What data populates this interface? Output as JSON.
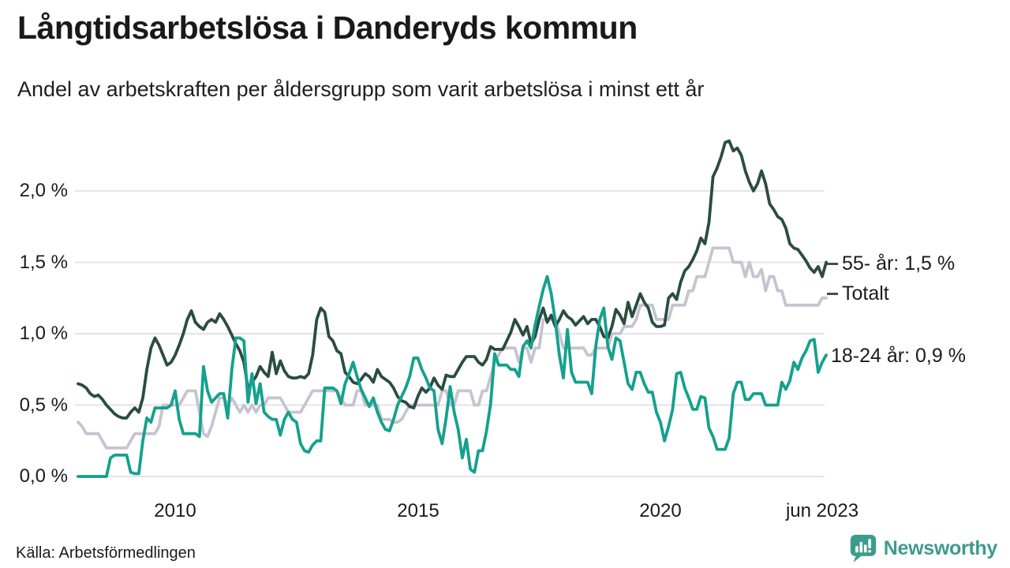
{
  "footer": {
    "source": "Källa: Arbetsförmedlingen",
    "brand": "Newsworthy",
    "brand_color": "#3d9b8d",
    "logo_icon": "bar-chart-speech-bubble"
  },
  "chart_data": {
    "type": "line",
    "title": "Långtidsarbetslösa i Danderyds kommun",
    "subtitle": "Andel av arbetskraften per åldersgrupp som varit arbetslösa i minst ett år",
    "unit": "%",
    "xlabel": "",
    "ylabel": "",
    "grid": "horizontal",
    "grid_color": "#e4e3e8",
    "x_start": "2008-01",
    "x_end": "2023-06",
    "x_step": "1 month",
    "xlim": [
      2007.9,
      2023.5
    ],
    "ylim": [
      0,
      2.4
    ],
    "y_ticks": [
      {
        "label": "2,0 %",
        "value": 2.0
      },
      {
        "label": "1,5 %",
        "value": 1.5
      },
      {
        "label": "1,0 %",
        "value": 1.0
      },
      {
        "label": "0,5 %",
        "value": 0.5
      },
      {
        "label": "0,0 %",
        "value": 0.0
      }
    ],
    "x_ticks": [
      {
        "label": "2010",
        "year": 2010
      },
      {
        "label": "2015",
        "year": 2015
      },
      {
        "label": "2020",
        "year": 2020
      },
      {
        "label": "jun 2023",
        "year": 2023.42
      }
    ],
    "series": [
      {
        "name": "Totalt",
        "key": "totalt",
        "color": "#c7c3d1",
        "end_label": "Totalt",
        "end_value": 1.25,
        "values": [
          0.38,
          0.35,
          0.3,
          0.3,
          0.3,
          0.3,
          0.25,
          0.2,
          0.2,
          0.2,
          0.2,
          0.2,
          0.2,
          0.25,
          0.3,
          0.3,
          0.3,
          0.3,
          0.3,
          0.3,
          0.35,
          0.5,
          0.5,
          0.5,
          0.5,
          0.5,
          0.55,
          0.6,
          0.6,
          0.6,
          0.45,
          0.3,
          0.28,
          0.35,
          0.45,
          0.55,
          0.55,
          0.5,
          0.55,
          0.5,
          0.45,
          0.5,
          0.45,
          0.5,
          0.45,
          0.5,
          0.5,
          0.55,
          0.55,
          0.55,
          0.55,
          0.5,
          0.45,
          0.45,
          0.45,
          0.45,
          0.5,
          0.55,
          0.6,
          0.6,
          0.6,
          0.6,
          0.6,
          0.6,
          0.6,
          0.55,
          0.5,
          0.5,
          0.5,
          0.6,
          0.6,
          0.5,
          0.5,
          0.5,
          0.5,
          0.4,
          0.4,
          0.4,
          0.38,
          0.38,
          0.4,
          0.45,
          0.5,
          0.5,
          0.5,
          0.5,
          0.5,
          0.5,
          0.5,
          0.5,
          0.6,
          0.6,
          0.5,
          0.5,
          0.6,
          0.6,
          0.6,
          0.6,
          0.5,
          0.5,
          0.6,
          0.6,
          0.7,
          0.8,
          0.85,
          0.9,
          0.9,
          0.9,
          0.9,
          0.8,
          0.9,
          0.9,
          0.8,
          0.9,
          0.9,
          1.1,
          1.1,
          1.1,
          1.1,
          1.0,
          0.9,
          0.9,
          0.9,
          0.9,
          0.9,
          0.9,
          0.85,
          0.85,
          0.9,
          0.9,
          0.9,
          0.9,
          1.0,
          1.0,
          1.0,
          1.05,
          1.05,
          1.05,
          1.1,
          1.2,
          1.2,
          1.2,
          1.2,
          1.1,
          1.1,
          1.1,
          1.1,
          1.2,
          1.2,
          1.2,
          1.2,
          1.3,
          1.3,
          1.4,
          1.4,
          1.4,
          1.5,
          1.6,
          1.6,
          1.6,
          1.6,
          1.6,
          1.5,
          1.5,
          1.5,
          1.4,
          1.5,
          1.4,
          1.4,
          1.45,
          1.3,
          1.4,
          1.4,
          1.3,
          1.3,
          1.2,
          1.2,
          1.2,
          1.2,
          1.2,
          1.2,
          1.2,
          1.2,
          1.2,
          1.25,
          1.25
        ]
      },
      {
        "name": "55- år",
        "key": "55-ar",
        "color": "#2b4c41",
        "end_label": "55- år: 1,5 %",
        "end_value": 1.5,
        "values": [
          0.65,
          0.64,
          0.62,
          0.58,
          0.56,
          0.57,
          0.54,
          0.5,
          0.47,
          0.44,
          0.42,
          0.41,
          0.41,
          0.45,
          0.48,
          0.45,
          0.55,
          0.75,
          0.9,
          0.97,
          0.92,
          0.85,
          0.78,
          0.8,
          0.85,
          0.92,
          1.0,
          1.1,
          1.16,
          1.08,
          1.05,
          1.03,
          1.08,
          1.1,
          1.08,
          1.14,
          1.1,
          1.05,
          0.99,
          0.93,
          0.88,
          0.8,
          0.62,
          0.66,
          0.7,
          0.77,
          0.73,
          0.7,
          0.87,
          0.72,
          0.81,
          0.74,
          0.7,
          0.69,
          0.69,
          0.7,
          0.69,
          0.72,
          0.85,
          1.1,
          1.18,
          1.15,
          0.98,
          0.95,
          0.88,
          0.86,
          0.73,
          0.7,
          0.66,
          0.65,
          0.68,
          0.72,
          0.7,
          0.66,
          0.75,
          0.7,
          0.68,
          0.66,
          0.62,
          0.56,
          0.53,
          0.52,
          0.49,
          0.48,
          0.56,
          0.62,
          0.59,
          0.62,
          0.69,
          0.64,
          0.61,
          0.71,
          0.7,
          0.7,
          0.75,
          0.8,
          0.84,
          0.84,
          0.84,
          0.8,
          0.78,
          0.82,
          0.91,
          0.89,
          0.89,
          0.89,
          0.95,
          1.01,
          1.1,
          1.05,
          0.99,
          1.05,
          0.93,
          0.98,
          1.1,
          1.18,
          1.08,
          1.13,
          1.05,
          1.1,
          1.16,
          1.12,
          1.1,
          1.06,
          1.09,
          1.12,
          1.07,
          1.1,
          1.1,
          1.05,
          0.98,
          0.97,
          1.05,
          1.17,
          1.13,
          1.07,
          1.22,
          1.12,
          1.2,
          1.28,
          1.22,
          1.18,
          1.08,
          1.05,
          1.05,
          1.06,
          1.25,
          1.28,
          1.24,
          1.36,
          1.44,
          1.47,
          1.52,
          1.58,
          1.67,
          1.63,
          1.78,
          2.1,
          2.16,
          2.24,
          2.34,
          2.35,
          2.28,
          2.3,
          2.25,
          2.14,
          2.06,
          2.0,
          2.05,
          2.14,
          2.05,
          1.91,
          1.87,
          1.82,
          1.8,
          1.74,
          1.63,
          1.6,
          1.59,
          1.55,
          1.51,
          1.46,
          1.43,
          1.47,
          1.4,
          1.5
        ]
      },
      {
        "name": "18-24 år",
        "key": "18-24-ar",
        "color": "#14a18d",
        "end_label": "18-24 år: 0,9 %",
        "end_value": 0.9,
        "values": [
          0.0,
          0.0,
          0.0,
          0.0,
          0.0,
          0.0,
          0.0,
          0.0,
          0.13,
          0.15,
          0.15,
          0.15,
          0.15,
          0.03,
          0.02,
          0.02,
          0.25,
          0.41,
          0.38,
          0.48,
          0.48,
          0.48,
          0.48,
          0.5,
          0.6,
          0.4,
          0.3,
          0.3,
          0.3,
          0.3,
          0.28,
          0.77,
          0.6,
          0.52,
          0.55,
          0.58,
          0.58,
          0.41,
          0.75,
          0.97,
          0.97,
          0.95,
          0.52,
          0.72,
          0.51,
          0.65,
          0.45,
          0.42,
          0.4,
          0.4,
          0.29,
          0.4,
          0.45,
          0.4,
          0.38,
          0.23,
          0.18,
          0.17,
          0.22,
          0.25,
          0.25,
          0.62,
          0.62,
          0.62,
          0.6,
          0.51,
          0.65,
          0.72,
          0.8,
          0.7,
          0.61,
          0.55,
          0.49,
          0.55,
          0.45,
          0.38,
          0.33,
          0.32,
          0.4,
          0.5,
          0.56,
          0.62,
          0.7,
          0.83,
          0.83,
          0.75,
          0.69,
          0.62,
          0.6,
          0.33,
          0.23,
          0.41,
          0.63,
          0.45,
          0.33,
          0.13,
          0.26,
          0.05,
          0.03,
          0.18,
          0.18,
          0.32,
          0.51,
          0.86,
          0.78,
          0.78,
          0.78,
          0.75,
          0.75,
          0.7,
          0.91,
          0.95,
          0.9,
          1.06,
          1.19,
          1.31,
          1.4,
          1.28,
          1.09,
          0.85,
          0.69,
          1.03,
          0.73,
          0.66,
          0.66,
          0.66,
          0.66,
          0.58,
          0.91,
          1.1,
          1.18,
          0.91,
          0.82,
          0.97,
          0.95,
          0.8,
          0.65,
          0.61,
          0.73,
          0.73,
          0.65,
          0.59,
          0.59,
          0.45,
          0.38,
          0.25,
          0.35,
          0.47,
          0.72,
          0.73,
          0.62,
          0.55,
          0.47,
          0.47,
          0.56,
          0.55,
          0.34,
          0.28,
          0.19,
          0.19,
          0.19,
          0.27,
          0.58,
          0.66,
          0.66,
          0.54,
          0.54,
          0.58,
          0.58,
          0.58,
          0.5,
          0.5,
          0.5,
          0.5,
          0.66,
          0.61,
          0.67,
          0.8,
          0.75,
          0.83,
          0.88,
          0.95,
          0.96,
          0.73,
          0.8,
          0.85
        ]
      }
    ]
  }
}
